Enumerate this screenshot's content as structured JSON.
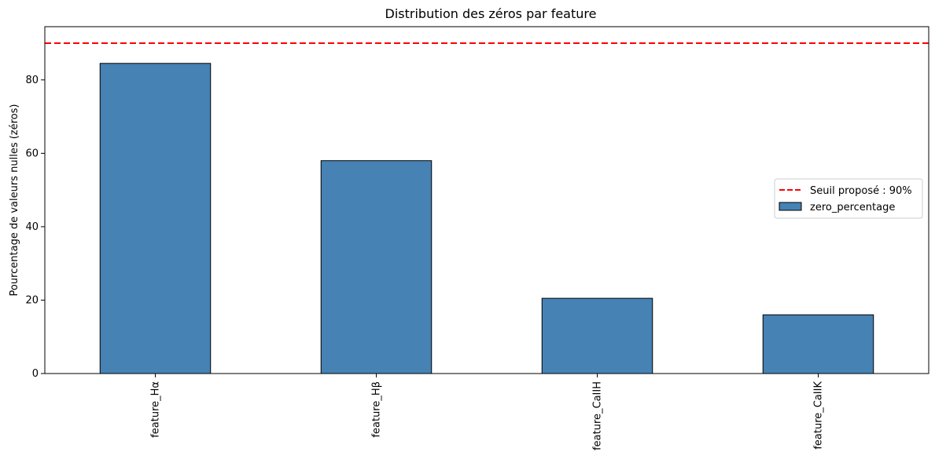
{
  "chart_data": {
    "type": "bar",
    "title": "Distribution des zéros par feature",
    "xlabel": "",
    "ylabel": "Pourcentage de valeurs nulles (zéros)",
    "categories": [
      "feature_Hα",
      "feature_Hβ",
      "feature_CaIIH",
      "feature_CaIIK"
    ],
    "series": [
      {
        "name": "zero_percentage",
        "values": [
          84.5,
          58.0,
          20.5,
          16.0
        ],
        "color": "#4682b4"
      }
    ],
    "ylim": [
      0,
      94.5
    ],
    "yticks": [
      0,
      20,
      40,
      60,
      80
    ],
    "threshold": {
      "value": 90,
      "label": "Seuil proposé : 90%",
      "color": "#ff0000",
      "style": "dashed"
    },
    "legend": {
      "placement": "center-right"
    },
    "grid": false
  }
}
